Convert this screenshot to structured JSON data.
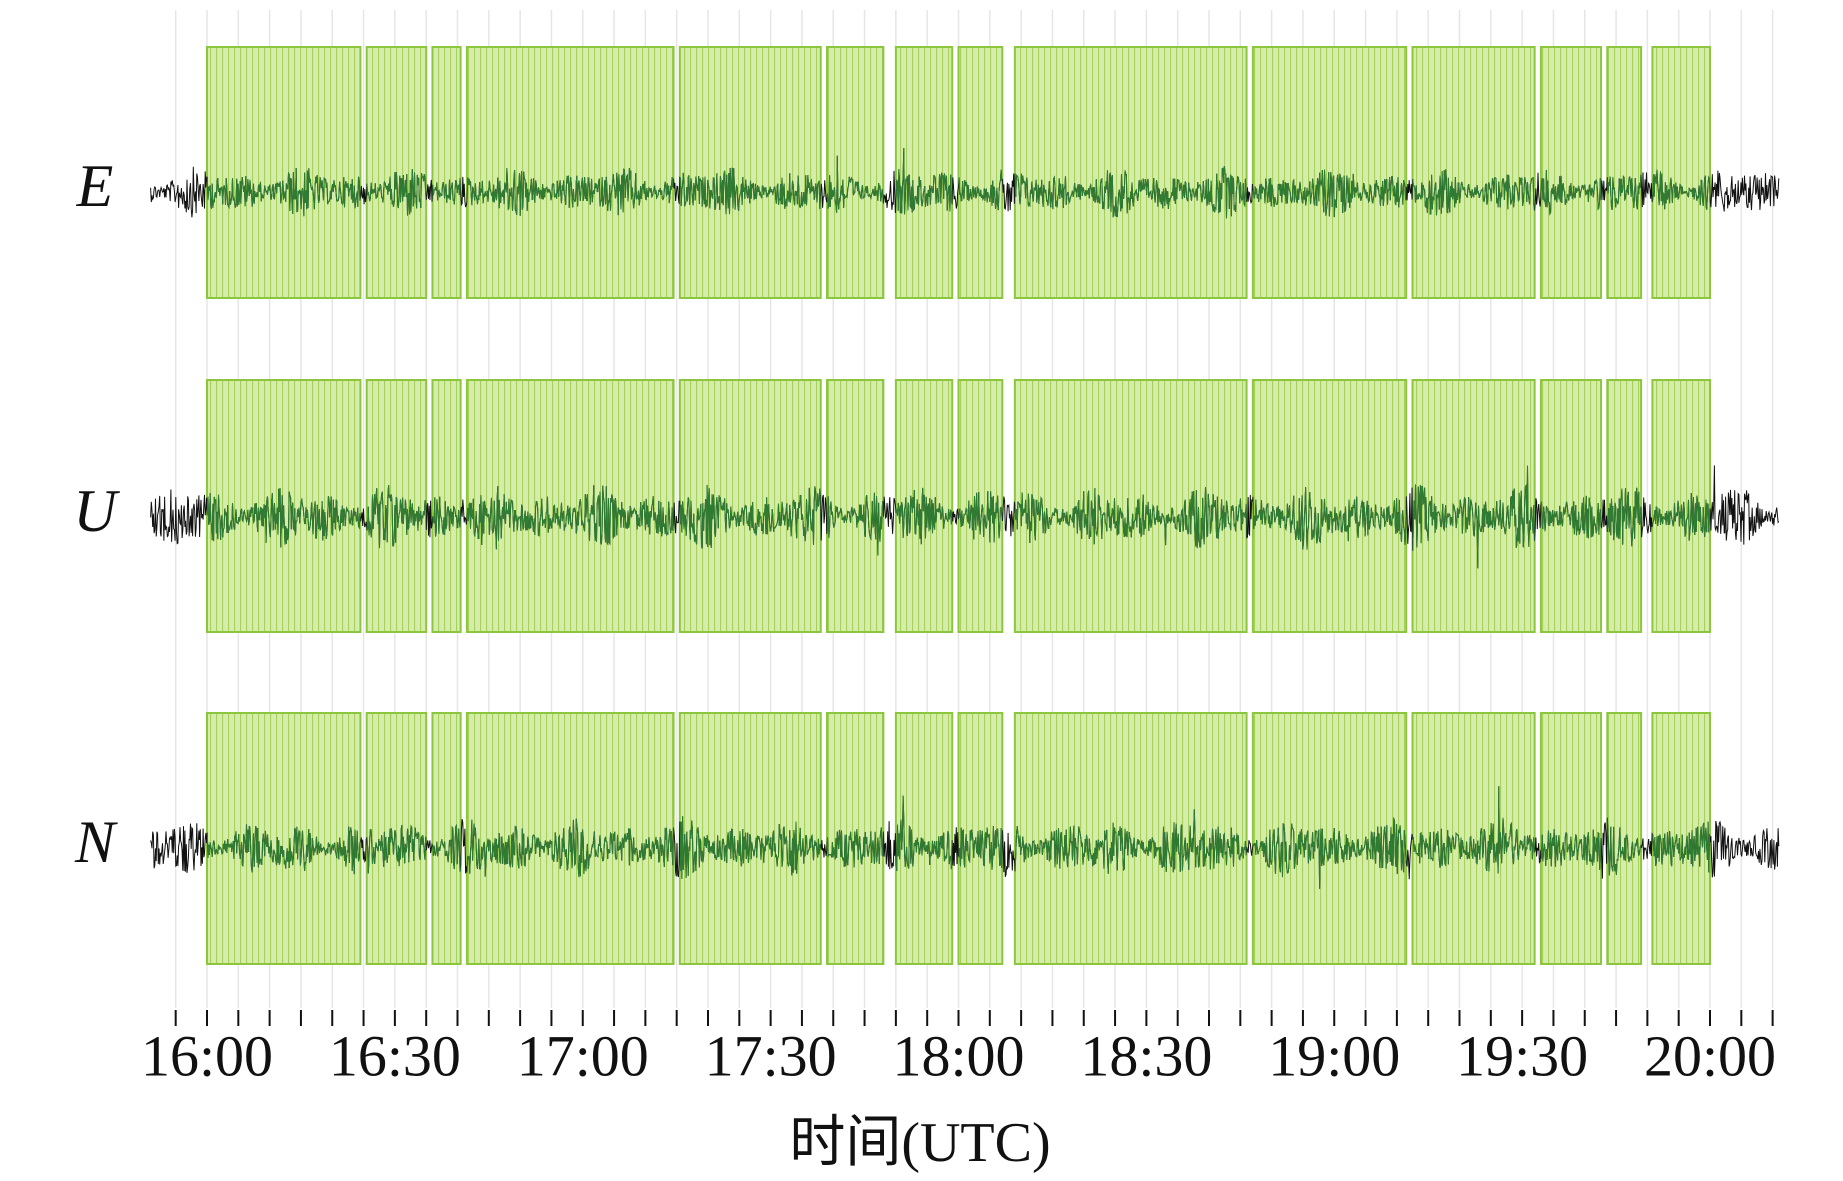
{
  "chart_data": {
    "type": "waveform",
    "channels": [
      "E",
      "U",
      "N"
    ],
    "xlabel": "时间(UTC)",
    "xlim": [
      -9,
      251
    ],
    "xticks": [
      {
        "value": 0,
        "label": "16:00"
      },
      {
        "value": 30,
        "label": "16:30"
      },
      {
        "value": 60,
        "label": "17:00"
      },
      {
        "value": 90,
        "label": "17:30"
      },
      {
        "value": 120,
        "label": "18:00"
      },
      {
        "value": 150,
        "label": "18:30"
      },
      {
        "value": 180,
        "label": "19:00"
      },
      {
        "value": 210,
        "label": "19:30"
      },
      {
        "value": 240,
        "label": "20:00"
      }
    ],
    "minor_xticks": [
      -5,
      5,
      10,
      15,
      20,
      25,
      35,
      40,
      45,
      50,
      55,
      65,
      70,
      75,
      80,
      85,
      95,
      100,
      105,
      110,
      115,
      125,
      130,
      135,
      140,
      145,
      155,
      160,
      165,
      170,
      175,
      185,
      190,
      195,
      200,
      205,
      215,
      220,
      225,
      230,
      235,
      245,
      250
    ],
    "grid": true,
    "windows": [
      [
        0,
        24.5
      ],
      [
        25.5,
        35
      ],
      [
        36,
        40.5
      ],
      [
        41.5,
        74.5
      ],
      [
        75.5,
        98
      ],
      [
        99,
        108
      ],
      [
        110,
        119
      ],
      [
        120,
        127
      ],
      [
        129,
        166
      ],
      [
        167,
        191.5
      ],
      [
        192.5,
        212
      ],
      [
        213,
        222.6
      ],
      [
        223.6,
        229
      ],
      [
        230.8,
        240
      ]
    ],
    "window_color": "#8cc63f",
    "signal_color": "#111111",
    "windowed_signal_color": "#2e7d32"
  }
}
